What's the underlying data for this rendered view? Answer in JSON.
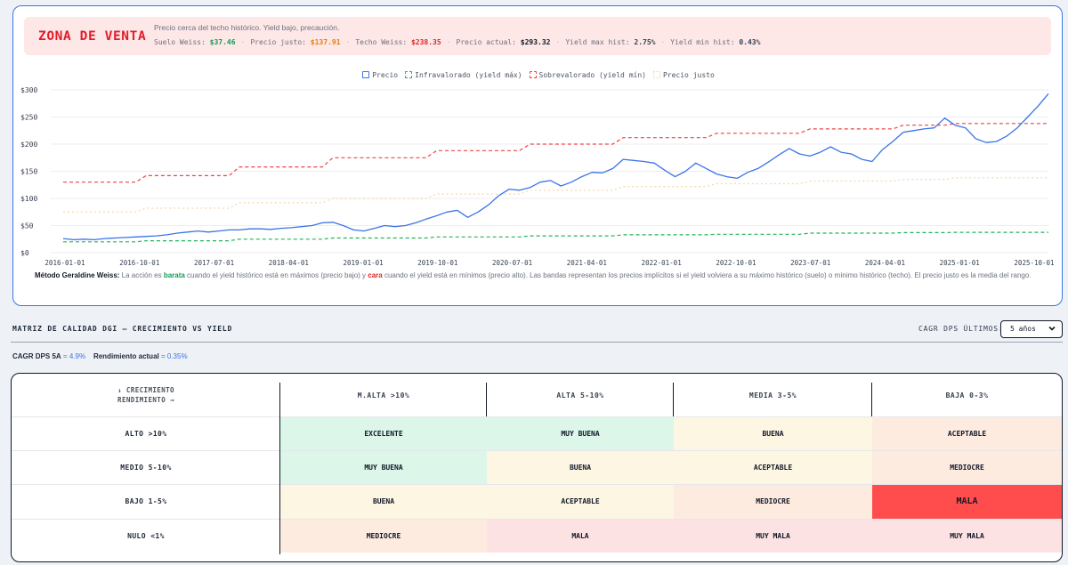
{
  "alert": {
    "title": "ZONA DE VENTA",
    "subtitle": "Precio cerca del techo histórico. Yield bajo, precaución.",
    "metrics": [
      {
        "label": "Suelo Weiss:",
        "value": "$37.46",
        "color": "green"
      },
      {
        "label": "Precio justo:",
        "value": "$137.91",
        "color": "orange"
      },
      {
        "label": "Techo Weiss:",
        "value": "$238.35",
        "color": "red"
      },
      {
        "label": "Precio actual:",
        "value": "$293.32",
        "color": "dark"
      },
      {
        "label": "Yield max hist:",
        "value": "2.75%",
        "color": "slate"
      },
      {
        "label": "Yield min hist:",
        "value": "0.43%",
        "color": "slate"
      }
    ]
  },
  "legend": [
    {
      "label": "Precio",
      "color": "#3b74e8",
      "style": "solid"
    },
    {
      "label": "Infravalorado (yield máx)",
      "color": "#22b45a",
      "style": "dashed"
    },
    {
      "label": "Sobrevalorado (yield mín)",
      "color": "#ef4444",
      "style": "dashed"
    },
    {
      "label": "Precio justo",
      "color": "#f5d7a8",
      "style": "dotted"
    }
  ],
  "chart_data": {
    "type": "line",
    "ylim": [
      0,
      300
    ],
    "yticks": [
      "$0",
      "$50",
      "$100",
      "$150",
      "$200",
      "$250",
      "$300"
    ],
    "ytick_values": [
      0,
      50,
      100,
      150,
      200,
      250,
      300
    ],
    "xticks": [
      "2016-01-01",
      "2016-10-01",
      "2017-07-01",
      "2018-04-01",
      "2019-01-01",
      "2019-10-01",
      "2020-07-01",
      "2021-04-01",
      "2022-01-01",
      "2022-10-01",
      "2023-07-01",
      "2024-04-01",
      "2025-01-01",
      "2025-10-01"
    ],
    "grid": true,
    "legend_position": "top",
    "series": [
      {
        "name": "Precio",
        "color": "#3b74e8",
        "values": [
          26,
          24,
          25,
          24,
          26,
          27,
          28,
          29,
          30,
          31,
          33,
          36,
          38,
          40,
          38,
          40,
          42,
          42,
          44,
          44,
          43,
          45,
          46,
          48,
          50,
          55,
          56,
          50,
          42,
          40,
          45,
          50,
          48,
          50,
          55,
          62,
          68,
          75,
          78,
          65,
          75,
          88,
          105,
          117,
          115,
          120,
          130,
          133,
          123,
          130,
          140,
          148,
          147,
          155,
          172,
          170,
          168,
          165,
          152,
          140,
          150,
          165,
          155,
          145,
          140,
          137,
          148,
          155,
          167,
          180,
          192,
          182,
          178,
          185,
          195,
          185,
          182,
          172,
          168,
          190,
          205,
          222,
          225,
          228,
          230,
          248,
          235,
          230,
          210,
          203,
          205,
          215,
          230,
          250,
          270,
          293
        ]
      },
      {
        "name": "Sobrevalorado (yield mín)",
        "color": "#ef4444",
        "values": [
          130,
          130,
          130,
          130,
          130,
          130,
          130,
          130,
          142,
          142,
          142,
          142,
          142,
          142,
          142,
          142,
          142,
          158,
          158,
          158,
          158,
          158,
          158,
          158,
          158,
          158,
          175,
          175,
          175,
          175,
          175,
          175,
          175,
          175,
          175,
          175,
          188,
          188,
          188,
          188,
          188,
          188,
          188,
          188,
          188,
          200,
          200,
          200,
          200,
          200,
          200,
          200,
          200,
          200,
          212,
          212,
          212,
          212,
          212,
          212,
          212,
          212,
          212,
          220,
          220,
          220,
          220,
          220,
          220,
          220,
          220,
          220,
          228,
          228,
          228,
          228,
          228,
          228,
          228,
          228,
          228,
          235,
          235,
          235,
          235,
          235,
          238,
          238,
          238,
          238,
          238,
          238,
          238,
          238,
          238,
          238
        ]
      },
      {
        "name": "Precio justo",
        "color": "#f5d7a8",
        "values": [
          75,
          75,
          75,
          75,
          75,
          75,
          75,
          75,
          82,
          82,
          82,
          82,
          82,
          82,
          82,
          82,
          82,
          92,
          92,
          92,
          92,
          92,
          92,
          92,
          92,
          92,
          100,
          100,
          100,
          100,
          100,
          100,
          100,
          100,
          100,
          100,
          108,
          108,
          108,
          108,
          108,
          108,
          108,
          108,
          108,
          115,
          115,
          115,
          115,
          115,
          115,
          115,
          115,
          115,
          122,
          122,
          122,
          122,
          122,
          122,
          122,
          122,
          122,
          127,
          127,
          127,
          127,
          127,
          127,
          127,
          127,
          127,
          132,
          132,
          132,
          132,
          132,
          132,
          132,
          132,
          132,
          135,
          135,
          135,
          135,
          135,
          138,
          138,
          138,
          138,
          138,
          138,
          138,
          138,
          138,
          138
        ]
      },
      {
        "name": "Infravalorado (yield máx)",
        "color": "#22b45a",
        "values": [
          20,
          20,
          20,
          20,
          20,
          20,
          20,
          20,
          22,
          22,
          22,
          22,
          22,
          22,
          22,
          22,
          22,
          25,
          25,
          25,
          25,
          25,
          25,
          25,
          25,
          25,
          27,
          27,
          27,
          27,
          27,
          27,
          27,
          27,
          27,
          27,
          29,
          29,
          29,
          29,
          29,
          29,
          29,
          29,
          29,
          31,
          31,
          31,
          31,
          31,
          31,
          31,
          31,
          31,
          33,
          33,
          33,
          33,
          33,
          33,
          33,
          33,
          33,
          34,
          34,
          34,
          34,
          34,
          34,
          34,
          34,
          34,
          36,
          36,
          36,
          36,
          36,
          36,
          36,
          36,
          36,
          37,
          37,
          37,
          37,
          37,
          37.5,
          37.5,
          37.5,
          37.5,
          37.5,
          37.5,
          37.5,
          37.5,
          37.5,
          37.5
        ]
      }
    ]
  },
  "method_note": {
    "label": "Método Geraldine Weiss:",
    "text1": " La acción es ",
    "cheap": "barata",
    "text2": " cuando el yield histórico está en máximos (precio bajo) y ",
    "expensive": "cara",
    "text3": " cuando el yield está en mínimos (precio alto). Las bandas representan los precios implícitos si el yield volviera a su máximo histórico (suelo) o mínimo histórico (techo). El precio justo es la media del rango."
  },
  "matrix_section": {
    "title": "MATRIZ DE CALIDAD DGI — CRECIMIENTO VS YIELD",
    "cagr_label": "CAGR DPS ÚLTIMOS:",
    "cagr_selected": "5 años",
    "stat1_label": "CAGR DPS 5A",
    "stat1_value": "= 4.9%",
    "stat2_label": "Rendimiento actual",
    "stat2_value": "= 0.35%"
  },
  "matrix": {
    "corner_line1": "↓ CRECIMIENTO",
    "corner_line2": "RENDIMIENTO →",
    "columns": [
      "M.ALTA >10%",
      "ALTA 5-10%",
      "MEDIA 3-5%",
      "BAJA 0-3%"
    ],
    "rows": [
      {
        "label": "ALTO >10%",
        "cells": [
          "EXCELENTE",
          "MUY BUENA",
          "BUENA",
          "ACEPTABLE"
        ]
      },
      {
        "label": "MEDIO 5-10%",
        "cells": [
          "MUY BUENA",
          "BUENA",
          "ACEPTABLE",
          "MEDIOCRE"
        ]
      },
      {
        "label": "BAJO 1-5%",
        "cells": [
          "BUENA",
          "ACEPTABLE",
          "MEDIOCRE",
          "MALA"
        ]
      },
      {
        "label": "NULO <1%",
        "cells": [
          "MEDIOCRE",
          "MALA",
          "MUY MALA",
          "MUY MALA"
        ]
      }
    ],
    "highlight": {
      "row": 2,
      "col": 3
    }
  }
}
